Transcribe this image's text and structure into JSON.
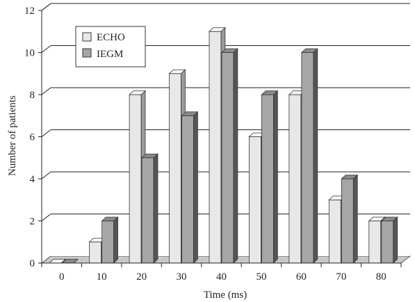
{
  "chart_data": {
    "type": "bar",
    "categories": [
      "0",
      "10",
      "20",
      "30",
      "40",
      "50",
      "60",
      "70",
      "80"
    ],
    "series": [
      {
        "name": "ECHO",
        "values": [
          0,
          1,
          8,
          9,
          11,
          6,
          8,
          3,
          2
        ],
        "color": "#e8e8e8"
      },
      {
        "name": "IEGM",
        "values": [
          0,
          2,
          5,
          7,
          10,
          8,
          10,
          4,
          2
        ],
        "color": "#a6a6a6"
      }
    ],
    "xlabel": "Time (ms)",
    "ylabel": "Number of patients",
    "ylim": [
      0,
      12
    ],
    "yticks": [
      0,
      2,
      4,
      6,
      8,
      10,
      12
    ],
    "grid": true,
    "legend_position": "top-left",
    "style": "3d"
  }
}
